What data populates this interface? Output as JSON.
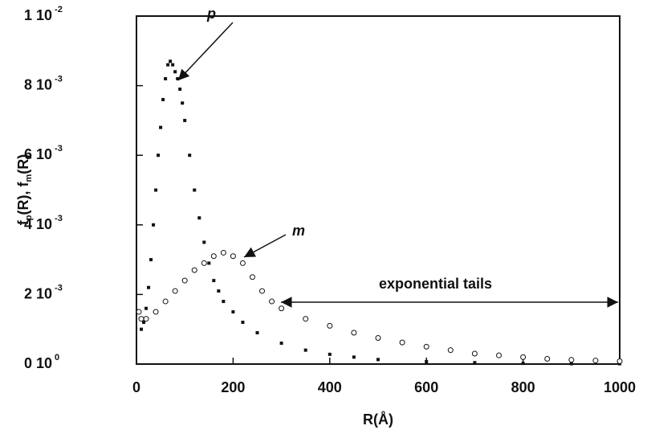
{
  "chart_data": {
    "type": "scatter",
    "xlabel": "R(Å)",
    "ylabel_parts": [
      "f",
      "p",
      "(R),  f",
      "m",
      "(R)"
    ],
    "xlim": [
      0,
      1000
    ],
    "xticks": [
      0,
      200,
      400,
      600,
      800,
      1000
    ],
    "ylim": [
      0,
      0.01
    ],
    "yticks": [
      {
        "value": 0,
        "label": "0  10",
        "power": "0"
      },
      {
        "value": 0.002,
        "label": "2  10",
        "power": "-3"
      },
      {
        "value": 0.004,
        "label": "4  10",
        "power": "-3"
      },
      {
        "value": 0.006,
        "label": "6  10",
        "power": "-3"
      },
      {
        "value": 0.008,
        "label": "8  10",
        "power": "-3"
      },
      {
        "value": 0.01,
        "label": "1  10",
        "power": "-2"
      }
    ],
    "annotations": [
      "p",
      "m",
      "exponential  tails"
    ],
    "series": [
      {
        "name": "p",
        "marker": "dot",
        "color": "#111",
        "x": [
          10,
          15,
          20,
          25,
          30,
          35,
          40,
          45,
          50,
          55,
          60,
          65,
          70,
          75,
          80,
          85,
          90,
          95,
          100,
          110,
          120,
          130,
          140,
          150,
          160,
          170,
          180,
          200,
          220,
          250,
          300,
          350,
          400,
          450,
          500,
          600,
          700,
          800,
          900,
          1000
        ],
        "values": [
          0.001,
          0.0012,
          0.0016,
          0.0022,
          0.003,
          0.004,
          0.005,
          0.006,
          0.0068,
          0.0076,
          0.0082,
          0.0086,
          0.0087,
          0.0086,
          0.0084,
          0.0082,
          0.0079,
          0.0075,
          0.007,
          0.006,
          0.005,
          0.0042,
          0.0035,
          0.0029,
          0.0024,
          0.0021,
          0.0018,
          0.0015,
          0.0012,
          0.0009,
          0.0006,
          0.0004,
          0.00028,
          0.0002,
          0.00013,
          7e-05,
          4e-05,
          2e-05,
          1e-05,
          1e-05
        ]
      },
      {
        "name": "m",
        "marker": "circle",
        "color": "#111",
        "x": [
          5,
          10,
          20,
          40,
          60,
          80,
          100,
          120,
          140,
          160,
          180,
          200,
          220,
          240,
          260,
          280,
          300,
          350,
          400,
          450,
          500,
          550,
          600,
          650,
          700,
          750,
          800,
          850,
          900,
          950,
          1000
        ],
        "values": [
          0.0015,
          0.0013,
          0.0013,
          0.0015,
          0.0018,
          0.0021,
          0.0024,
          0.0027,
          0.0029,
          0.0031,
          0.0032,
          0.0031,
          0.0029,
          0.0025,
          0.0021,
          0.0018,
          0.0016,
          0.0013,
          0.0011,
          0.0009,
          0.00075,
          0.00062,
          0.0005,
          0.0004,
          0.0003,
          0.00025,
          0.0002,
          0.00015,
          0.00012,
          0.0001,
          8e-05
        ]
      }
    ]
  }
}
